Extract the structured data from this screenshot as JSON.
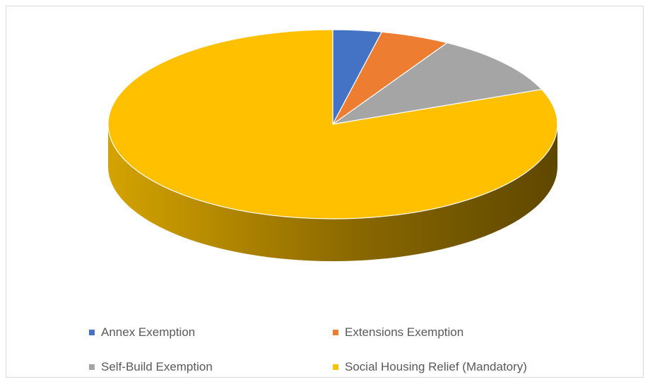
{
  "chart_data": {
    "type": "pie",
    "style": "3d",
    "title": "",
    "legend_position": "bottom",
    "categories": [
      "Annex Exemption",
      "Extensions Exemption",
      "Self-Build Exemption",
      "Social Housing Relief (Mandatory)"
    ],
    "values": [
      3.5,
      5.0,
      10.5,
      81.0
    ],
    "value_unit": "percent",
    "colors": [
      "#4472c4",
      "#ed7d31",
      "#a5a5a5",
      "#ffc000"
    ],
    "side_colors": [
      "#1f3864",
      "#843c0c",
      "#525252",
      "#7f6000"
    ]
  }
}
